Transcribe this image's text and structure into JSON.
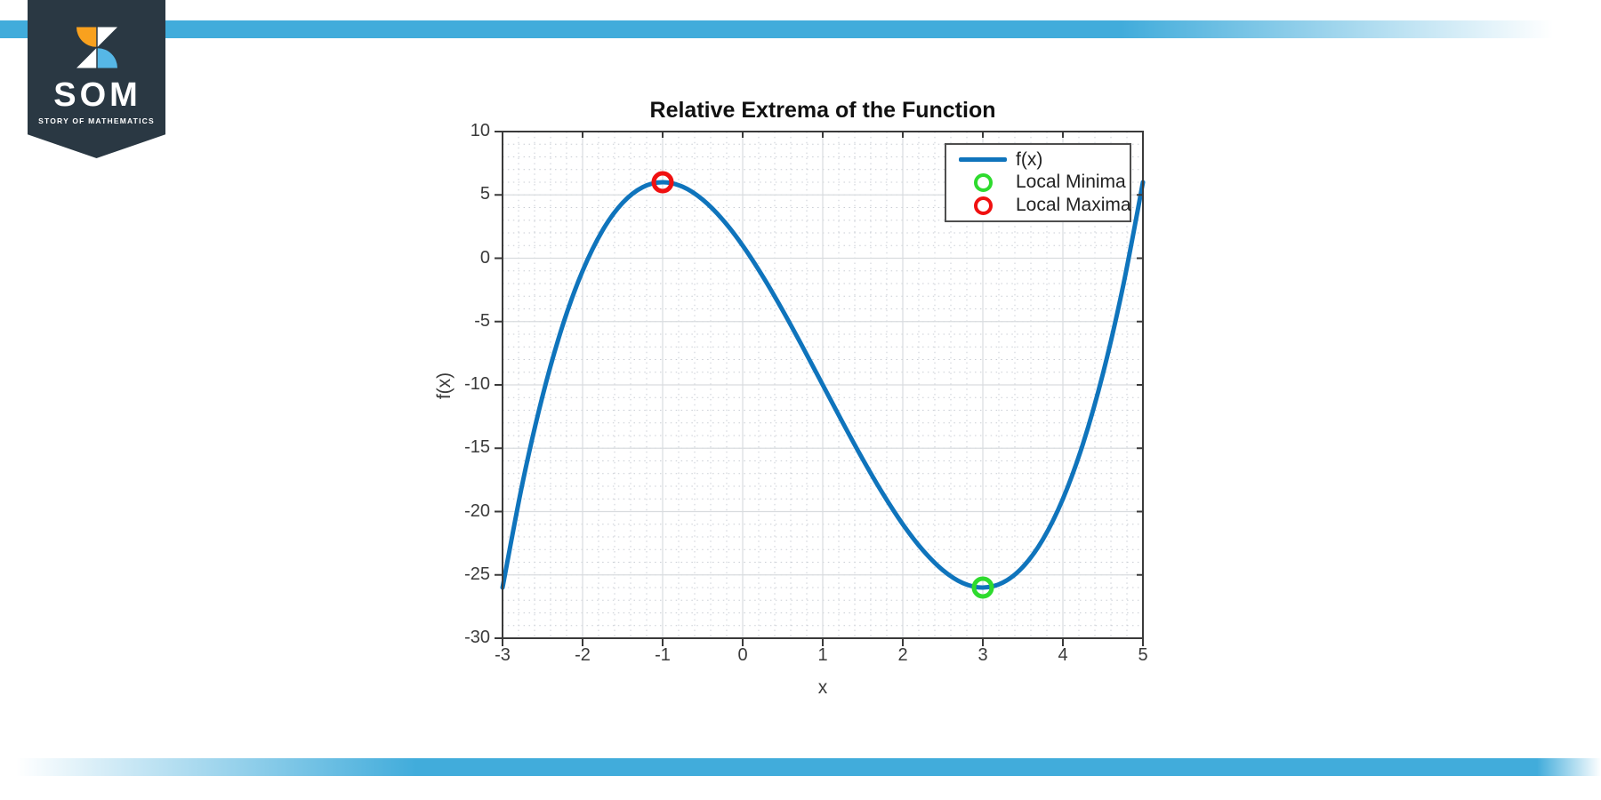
{
  "branding": {
    "stripe_color": "#41ACDB",
    "banner": {
      "bg": "#2A3843",
      "logo_title": "SOM",
      "logo_subtitle": "STORY OF MATHEMATICS",
      "icon_colors": {
        "orange": "#F9A11E",
        "blue": "#56B7E6",
        "white": "#FFFFFF"
      }
    }
  },
  "chart_data": {
    "type": "line",
    "title": "Relative Extrema of the Function",
    "xlabel": "x",
    "ylabel": "f(x)",
    "xlim": [
      -3,
      5
    ],
    "ylim": [
      -30,
      10
    ],
    "x_ticks": [
      -3,
      -2,
      -1,
      0,
      1,
      2,
      3,
      4,
      5
    ],
    "y_ticks": [
      10,
      5,
      0,
      -5,
      -10,
      -15,
      -20,
      -25,
      -30
    ],
    "x_minor_step": 0.2,
    "y_minor_step": 1,
    "grid": {
      "major": true,
      "minor": "dotted"
    },
    "series": [
      {
        "name": "f(x)",
        "color": "#0F74BC",
        "x": [
          -3,
          -2.75,
          -2.5,
          -2.25,
          -2,
          -1.75,
          -1.5,
          -1.25,
          -1,
          -0.75,
          -0.5,
          -0.25,
          0,
          0.25,
          0.5,
          0.75,
          1,
          1.25,
          1.5,
          1.75,
          2,
          2.25,
          2.5,
          2.75,
          3,
          3.25,
          3.5,
          3.75,
          4,
          4.25,
          4.5,
          4.75,
          5
        ],
        "y": [
          -26,
          -17.734,
          -10.875,
          -5.328,
          -1,
          2.203,
          4.375,
          5.609,
          6,
          5.641,
          4.625,
          3.047,
          1,
          -1.422,
          -4.125,
          -7.016,
          -10,
          -12.984,
          -15.875,
          -18.578,
          -21,
          -23.047,
          -24.625,
          -25.641,
          -26,
          -25.609,
          -24.375,
          -22.203,
          -19,
          -14.672,
          -9.125,
          -2.266,
          6
        ]
      }
    ],
    "extrema_markers": [
      {
        "label": "Local Maxima",
        "x": -1,
        "y": 6,
        "color": "#F01010"
      },
      {
        "label": "Local Minima",
        "x": 3,
        "y": -26,
        "color": "#2EDB2E"
      }
    ],
    "legend": {
      "position": "top-right",
      "items": [
        {
          "label": "f(x)",
          "marker": "line",
          "color": "#0F74BC"
        },
        {
          "label": "Local Minima",
          "marker": "circle",
          "color": "#2EDB2E"
        },
        {
          "label": "Local Maxima",
          "marker": "circle",
          "color": "#F01010"
        }
      ]
    }
  }
}
